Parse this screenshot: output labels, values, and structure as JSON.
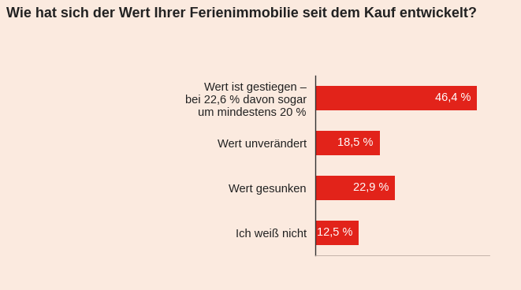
{
  "chart_data": {
    "type": "bar",
    "orientation": "horizontal",
    "title": "Wie hat sich der Wert Ihrer Ferienimmobilie seit dem Kauf entwickelt?",
    "categories": [
      "Wert ist gestiegen –\nbei 22,6 % davon sogar\num mindestens 20 %",
      "Wert unverändert",
      "Wert gesunken",
      "Ich weiß nicht"
    ],
    "values": [
      46.4,
      18.5,
      22.9,
      12.5
    ],
    "value_labels": [
      "46,4 %",
      "18,5 %",
      "22,9 %",
      "12,5 %"
    ],
    "data_labels": true,
    "color": "#e2231a",
    "xlim": [
      0,
      50
    ],
    "xticks": [],
    "tick_labels": "y",
    "grid": false
  }
}
